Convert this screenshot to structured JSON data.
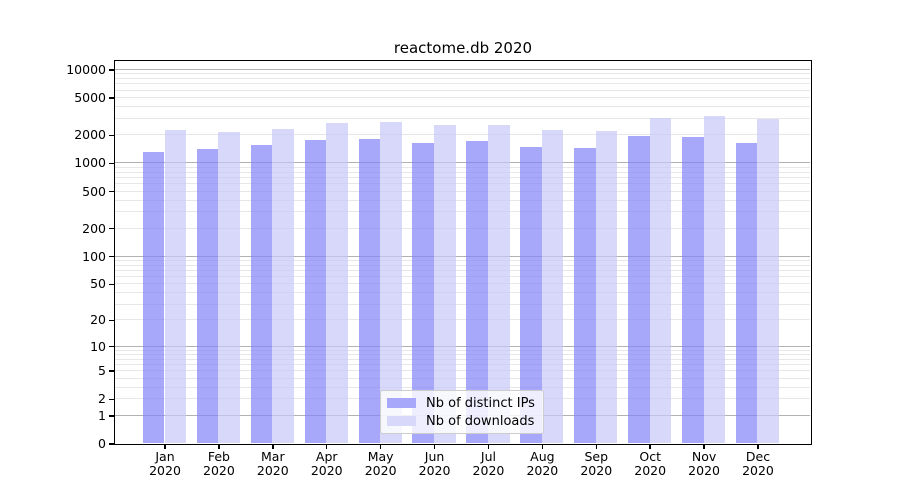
{
  "chart_data": {
    "type": "bar",
    "title": "reactome.db 2020",
    "categories": [
      "Jan",
      "Feb",
      "Mar",
      "Apr",
      "May",
      "Jun",
      "Jul",
      "Aug",
      "Sep",
      "Oct",
      "Nov",
      "Dec"
    ],
    "category_year": "2020",
    "series": [
      {
        "name": "Nb of distinct IPs",
        "color": "#a8a8fa",
        "fill": "rgba(131,131,248,0.7)",
        "values": [
          1300,
          1420,
          1540,
          1740,
          1820,
          1630,
          1700,
          1470,
          1430,
          1920,
          1910,
          1620
        ]
      },
      {
        "name": "Nb of downloads",
        "color": "#d8d8fa",
        "fill": "rgba(199,199,248,0.7)",
        "values": [
          2230,
          2170,
          2300,
          2690,
          2730,
          2560,
          2530,
          2240,
          2210,
          3040,
          3200,
          2930
        ]
      }
    ],
    "yscale": "log1p",
    "yticks": [
      0,
      1,
      2,
      5,
      10,
      20,
      50,
      100,
      200,
      500,
      1000,
      2000,
      5000,
      10000
    ],
    "ylim": [
      0,
      12500
    ],
    "grid": {
      "major": true,
      "minor": true
    },
    "legend_position": "lower center"
  },
  "colors": {
    "grid_major": "#b2b2b2",
    "grid_minor": "#e7e7e7",
    "frame": "#000000",
    "text": "#000000",
    "legend_border": "#cccccc",
    "background": "#ffffff"
  }
}
